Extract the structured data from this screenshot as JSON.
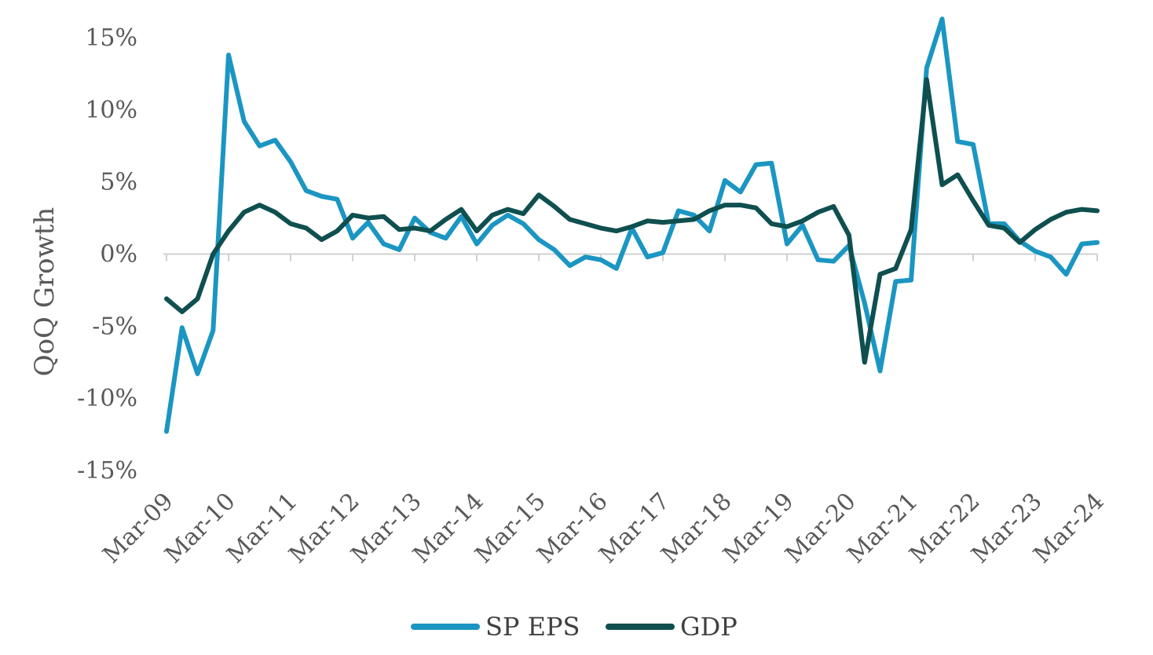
{
  "chart_data": {
    "type": "line",
    "ylabel": "QoQ Growth",
    "xlabel": "",
    "ylim": [
      -15,
      15
    ],
    "yticks": [
      15,
      10,
      5,
      0,
      -5,
      -10,
      -15
    ],
    "ytick_labels": [
      "15%",
      "10%",
      "5%",
      "0%",
      "-5%",
      "-10%",
      "-15%"
    ],
    "xtick_labels": [
      "Mar-09",
      "Mar-10",
      "Mar-11",
      "Mar-12",
      "Mar-13",
      "Mar-14",
      "Mar-15",
      "Mar-16",
      "Mar-17",
      "Mar-18",
      "Mar-19",
      "Mar-20",
      "Mar-21",
      "Mar-22",
      "Mar-23",
      "Mar-24"
    ],
    "legend_position": "bottom",
    "grid": false,
    "x": [
      "Mar-09",
      "Jun-09",
      "Sep-09",
      "Dec-09",
      "Mar-10",
      "Jun-10",
      "Sep-10",
      "Dec-10",
      "Mar-11",
      "Jun-11",
      "Sep-11",
      "Dec-11",
      "Mar-12",
      "Jun-12",
      "Sep-12",
      "Dec-12",
      "Mar-13",
      "Jun-13",
      "Sep-13",
      "Dec-13",
      "Mar-14",
      "Jun-14",
      "Sep-14",
      "Dec-14",
      "Mar-15",
      "Jun-15",
      "Sep-15",
      "Dec-15",
      "Mar-16",
      "Jun-16",
      "Sep-16",
      "Dec-16",
      "Mar-17",
      "Jun-17",
      "Sep-17",
      "Dec-17",
      "Mar-18",
      "Jun-18",
      "Sep-18",
      "Dec-18",
      "Mar-19",
      "Jun-19",
      "Sep-19",
      "Dec-19",
      "Mar-20",
      "Jun-20",
      "Sep-20",
      "Dec-20",
      "Mar-21",
      "Jun-21",
      "Sep-21",
      "Dec-21",
      "Mar-22",
      "Jun-22",
      "Sep-22",
      "Dec-22",
      "Mar-23",
      "Jun-23",
      "Sep-23",
      "Dec-23",
      "Mar-24"
    ],
    "series": [
      {
        "name": "SP EPS",
        "color": "#1b96c2",
        "values": [
          -12.3,
          -5.1,
          -8.3,
          -5.3,
          13.8,
          9.2,
          7.5,
          7.9,
          6.4,
          4.4,
          4.0,
          3.8,
          1.1,
          2.2,
          0.7,
          0.3,
          2.5,
          1.5,
          1.1,
          2.6,
          0.7,
          2.0,
          2.7,
          2.1,
          1.0,
          0.3,
          -0.8,
          -0.2,
          -0.4,
          -1.0,
          1.8,
          -0.2,
          0.1,
          3.0,
          2.7,
          1.6,
          5.1,
          4.3,
          6.2,
          6.3,
          0.7,
          2.0,
          -0.4,
          -0.5,
          0.6,
          -3.4,
          -8.1,
          -1.9,
          -1.8,
          12.9,
          16.3,
          7.8,
          7.6,
          2.1,
          2.1,
          0.9,
          0.2,
          -0.2,
          -1.4,
          0.7,
          0.8
        ]
      },
      {
        "name": "GDP",
        "color": "#0f4f4f",
        "values": [
          -3.1,
          -4.0,
          -3.1,
          0.0,
          1.6,
          2.9,
          3.4,
          2.9,
          2.1,
          1.8,
          1.0,
          1.6,
          2.7,
          2.5,
          2.6,
          1.7,
          1.8,
          1.6,
          2.4,
          3.1,
          1.6,
          2.7,
          3.1,
          2.8,
          4.1,
          3.3,
          2.4,
          2.1,
          1.8,
          1.6,
          1.9,
          2.3,
          2.2,
          2.3,
          2.4,
          3.0,
          3.4,
          3.4,
          3.2,
          2.1,
          1.9,
          2.3,
          2.9,
          3.3,
          1.3,
          -7.5,
          -1.4,
          -1.0,
          1.7,
          12.1,
          4.8,
          5.5,
          3.7,
          2.0,
          1.8,
          0.8,
          1.7,
          2.4,
          2.9,
          3.1,
          3.0
        ]
      }
    ]
  }
}
